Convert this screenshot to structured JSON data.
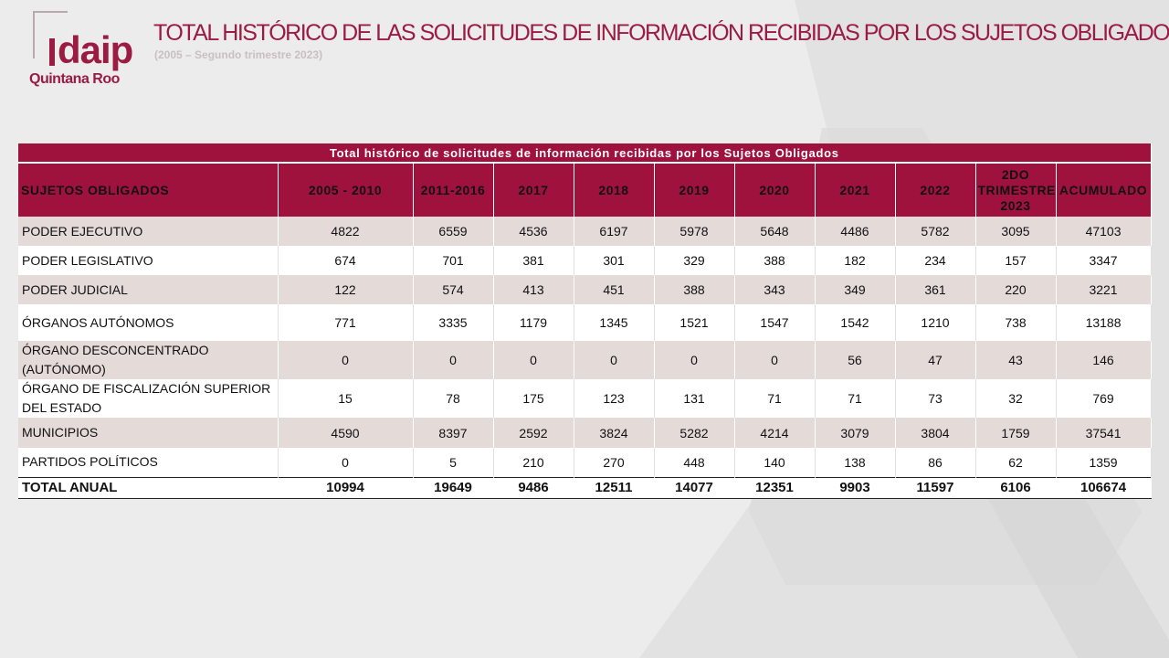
{
  "logo": {
    "word": "daip",
    "sub": "Quintana Roo"
  },
  "header": {
    "title": "TOTAL HISTÓRICO DE LAS SOLICITUDES DE INFORMACIÓN RECIBIDAS POR LOS SUJETOS OBLIGADOS.",
    "subtitle": "(2005 – Segundo trimestre 2023)"
  },
  "table": {
    "caption": "Total histórico de solicitudes de información recibidas por los Sujetos Obligados",
    "columns": [
      "SUJETOS OBLIGADOS",
      "2005 - 2010",
      "2011-2016",
      "2017",
      "2018",
      "2019",
      "2020",
      "2021",
      "2022",
      "2DO TRIMESTRE 2023",
      "ACUMULADO"
    ],
    "rows": [
      [
        "PODER EJECUTIVO",
        "4822",
        "6559",
        "4536",
        "6197",
        "5978",
        "5648",
        "4486",
        "5782",
        "3095",
        "47103"
      ],
      [
        "PODER LEGISLATIVO",
        "674",
        "701",
        "381",
        "301",
        "329",
        "388",
        "182",
        "234",
        "157",
        "3347"
      ],
      [
        "PODER JUDICIAL",
        "122",
        "574",
        "413",
        "451",
        "388",
        "343",
        "349",
        "361",
        "220",
        "3221"
      ],
      [
        "ÓRGANOS AUTÓNOMOS",
        "771",
        "3335",
        "1179",
        "1345",
        "1521",
        "1547",
        "1542",
        "1210",
        "738",
        "13188"
      ],
      [
        "ÓRGANO DESCONCENTRADO (AUTÓNOMO)",
        "0",
        "0",
        "0",
        "0",
        "0",
        "0",
        "56",
        "47",
        "43",
        "146"
      ],
      [
        "ÓRGANO DE FISCALIZACIÓN SUPERIOR DEL ESTADO",
        "15",
        "78",
        "175",
        "123",
        "131",
        "71",
        "71",
        "73",
        "32",
        "769"
      ],
      [
        "MUNICIPIOS",
        "4590",
        "8397",
        "2592",
        "3824",
        "5282",
        "4214",
        "3079",
        "3804",
        "1759",
        "37541"
      ],
      [
        "PARTIDOS POLÍTICOS",
        "0",
        "5",
        "210",
        "270",
        "448",
        "140",
        "138",
        "86",
        "62",
        "1359"
      ]
    ],
    "total": [
      "TOTAL ANUAL",
      "10994",
      "19649",
      "9486",
      "12511",
      "14077",
      "12351",
      "9903",
      "11597",
      "6106",
      "106674"
    ]
  },
  "colors": {
    "brand": "#a0123e",
    "row_shade": "#e4dad8"
  }
}
